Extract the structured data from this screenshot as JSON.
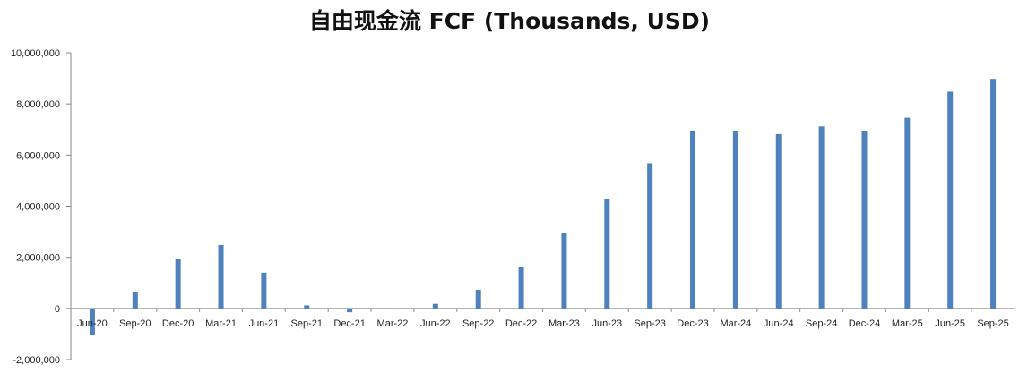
{
  "chart_data": {
    "type": "bar",
    "title": "自由现金流 FCF (Thousands, USD)",
    "xlabel": "",
    "ylabel": "",
    "ylim": [
      -2000000,
      10000000
    ],
    "y_ticks": [
      -2000000,
      0,
      2000000,
      4000000,
      6000000,
      8000000,
      10000000
    ],
    "y_tick_labels": [
      "-2,000,000",
      "0",
      "2,000,000",
      "4,000,000",
      "6,000,000",
      "8,000,000",
      "10,000,000"
    ],
    "grid": false,
    "legend": "none",
    "bar_color": "#4F81BD",
    "categories": [
      "Jun-20",
      "Sep-20",
      "Dec-20",
      "Mar-21",
      "Jun-21",
      "Sep-21",
      "Dec-21",
      "Mar-22",
      "Jun-22",
      "Sep-22",
      "Dec-22",
      "Mar-23",
      "Jun-23",
      "Sep-23",
      "Dec-23",
      "Mar-24",
      "Jun-24",
      "Sep-24",
      "Dec-24",
      "Mar-25",
      "Jun-25",
      "Sep-25"
    ],
    "values": [
      -1050000,
      650000,
      1920000,
      2480000,
      1400000,
      120000,
      -150000,
      -40000,
      180000,
      730000,
      1620000,
      2950000,
      4280000,
      5680000,
      6930000,
      6950000,
      6820000,
      7120000,
      6920000,
      7460000,
      8480000,
      8980000
    ]
  }
}
